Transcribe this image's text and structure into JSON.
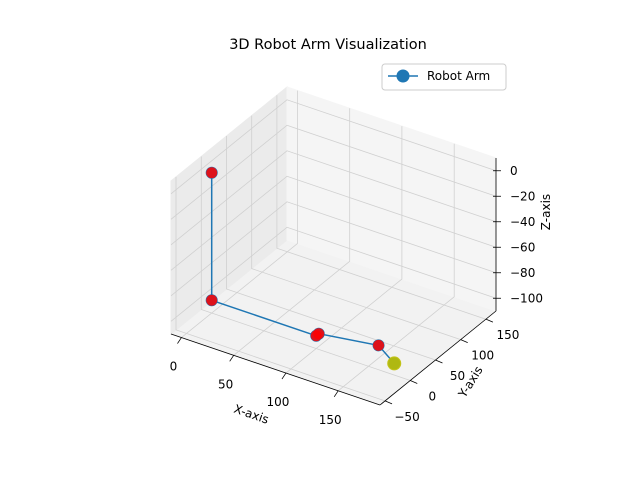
{
  "chart_data": {
    "type": "line3d",
    "title": "3D Robot Arm Visualization",
    "xlabel": "X-axis",
    "ylabel": "Y-axis",
    "zlabel": "Z-axis",
    "xlim": [
      -10,
      190
    ],
    "ylim": [
      -60,
      170
    ],
    "zlim": [
      -110,
      10
    ],
    "xticks": [
      "0",
      "50",
      "100",
      "150"
    ],
    "yticks": [
      "−50",
      "0",
      "50",
      "100",
      "150"
    ],
    "zticks": [
      "0",
      "−20",
      "−40",
      "−60",
      "−80",
      "−100"
    ],
    "xtick_values": [
      0,
      50,
      100,
      150
    ],
    "ytick_values": [
      -50,
      0,
      50,
      100,
      150
    ],
    "ztick_values": [
      0,
      -20,
      -40,
      -60,
      -80,
      -100
    ],
    "grid": true,
    "legend_position": "top-right",
    "series": [
      {
        "name": "Robot Arm",
        "color": "#1f77b4",
        "marker": "circle",
        "points": [
          {
            "x": 0,
            "y": 0,
            "z": 0
          },
          {
            "x": 0,
            "y": 0,
            "z": -100
          },
          {
            "x": 100,
            "y": 0,
            "z": -100
          },
          {
            "x": 100,
            "y": 5,
            "z": -100
          },
          {
            "x": 150,
            "y": 20,
            "z": -100
          },
          {
            "x": 165,
            "y": 20,
            "z": -110
          }
        ]
      }
    ],
    "joints": [
      {
        "x": 0,
        "y": 0,
        "z": 0,
        "color": "#ff0000"
      },
      {
        "x": 0,
        "y": 0,
        "z": -100,
        "color": "#ff0000"
      },
      {
        "x": 100,
        "y": 0,
        "z": -100,
        "color": "#ff0000"
      },
      {
        "x": 100,
        "y": 5,
        "z": -100,
        "color": "#ff0000"
      },
      {
        "x": 150,
        "y": 20,
        "z": -100,
        "color": "#ff0000"
      }
    ],
    "end_effector": {
      "x": 165,
      "y": 20,
      "z": -110,
      "color": "#bfbf00"
    }
  }
}
